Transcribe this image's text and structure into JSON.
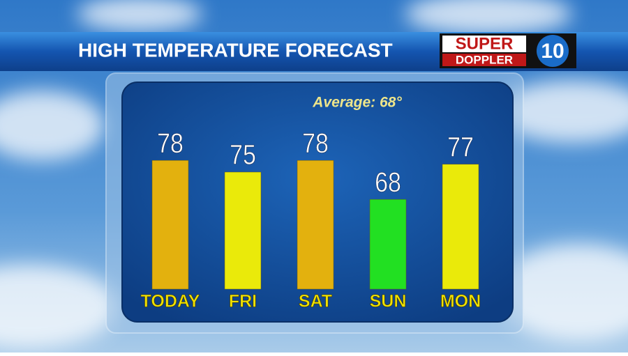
{
  "header": {
    "logo_top": "SUPER",
    "logo_bottom": "DOPPLER",
    "logo_number": "10"
  },
  "chart_data": {
    "type": "bar",
    "title": "HIGH TEMPERATURE FORECAST",
    "annotation": "Average: 68°",
    "categories": [
      "TODAY",
      "FRI",
      "SAT",
      "SUN",
      "MON"
    ],
    "values": [
      78,
      75,
      78,
      68,
      77
    ],
    "colors": [
      "#e3b10e",
      "#eaea0a",
      "#e3b10e",
      "#22e022",
      "#eaea0a"
    ],
    "ylim": [
      45,
      80
    ]
  }
}
